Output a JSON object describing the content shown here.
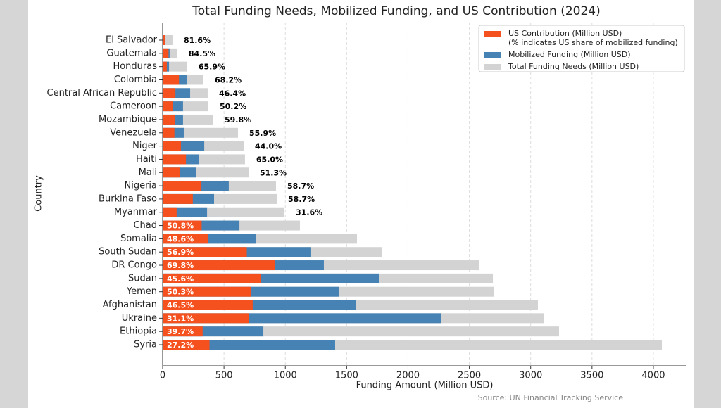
{
  "chart_data": {
    "type": "bar",
    "orientation": "horizontal",
    "title": "Total Funding Needs, Mobilized Funding, and US Contribution (2024)",
    "x_label": "Funding Amount (Million USD)",
    "y_label": "Country",
    "source": "Source: UN Financial Tracking Service",
    "categories": [
      "El Salvador",
      "Guatemala",
      "Honduras",
      "Colombia",
      "Central African Republic",
      "Cameroon",
      "Mozambique",
      "Venezuela",
      "Niger",
      "Haiti",
      "Mali",
      "Nigeria",
      "Burkina Faso",
      "Myanmar",
      "Chad",
      "Somalia",
      "South Sudan",
      "DR Congo",
      "Sudan",
      "Yemen",
      "Afghanistan",
      "Ukraine",
      "Ethiopia",
      "Syria"
    ],
    "series": [
      {
        "name": "US Contribution (Million USD)",
        "name_note": "(% indicates US share of mobilized funding)",
        "color": "#f4511e",
        "values": [
          17,
          48,
          34,
          133,
          104,
          83,
          99,
          96,
          149,
          190,
          138,
          316,
          246,
          114,
          318,
          368,
          686,
          917,
          803,
          722,
          734,
          705,
          326,
          382
        ]
      },
      {
        "name": "Mobilized Funding (Million USD)",
        "color": "#4682b4",
        "values": [
          21,
          57,
          52,
          195,
          224,
          166,
          166,
          172,
          339,
          293,
          270,
          539,
          419,
          362,
          626,
          758,
          1205,
          1314,
          1762,
          1435,
          1578,
          2267,
          821,
          1406
        ]
      },
      {
        "name": "Total Funding Needs (Million USD)",
        "color": "#d3d3d3",
        "values": [
          80,
          120,
          200,
          333,
          367,
          373,
          413,
          614,
          660,
          671,
          700,
          924,
          930,
          993,
          1119,
          1584,
          1785,
          2577,
          2692,
          2703,
          3059,
          3105,
          3231,
          4069
        ]
      }
    ],
    "share_labels": [
      "81.6%",
      "84.5%",
      "65.9%",
      "68.2%",
      "46.4%",
      "50.2%",
      "59.8%",
      "55.9%",
      "44.0%",
      "65.0%",
      "51.3%",
      "58.7%",
      "58.7%",
      "31.6%",
      "50.8%",
      "48.6%",
      "56.9%",
      "69.8%",
      "45.6%",
      "50.3%",
      "46.5%",
      "31.1%",
      "39.7%",
      "27.2%"
    ],
    "xlim": [
      0,
      4270
    ],
    "xticks": [
      0,
      500,
      1000,
      1500,
      2000,
      2500,
      3000,
      3500,
      4000
    ],
    "grid": true,
    "legend": "upper right"
  }
}
